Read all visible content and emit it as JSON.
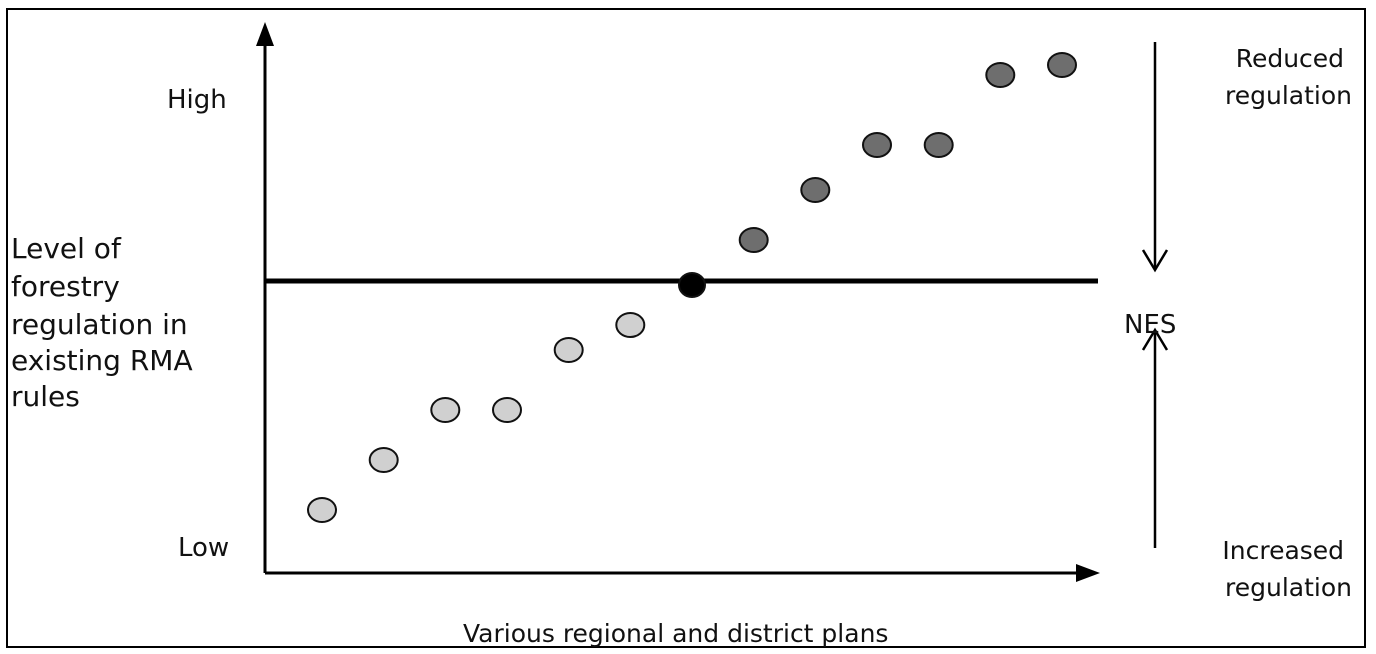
{
  "y_axis": {
    "title_lines": [
      "Level of",
      "forestry",
      "regulation in",
      "existing RMA",
      "rules"
    ],
    "high_label": "High",
    "low_label": "Low"
  },
  "x_axis": {
    "title": "Various regional and district plans"
  },
  "reference_line": {
    "label": "NES"
  },
  "arrows": {
    "top_label_lines": [
      "Reduced",
      "regulation"
    ],
    "bottom_label_lines": [
      "Increased",
      "regulation"
    ]
  },
  "points": [
    {
      "x": 1,
      "y": 1.0,
      "group": "below"
    },
    {
      "x": 2,
      "y": 2.0,
      "group": "below"
    },
    {
      "x": 3,
      "y": 3.0,
      "group": "below"
    },
    {
      "x": 4,
      "y": 3.0,
      "group": "below"
    },
    {
      "x": 5,
      "y": 4.2,
      "group": "below"
    },
    {
      "x": 6,
      "y": 4.7,
      "group": "below"
    },
    {
      "x": 7,
      "y": 5.5,
      "group": "nes"
    },
    {
      "x": 8,
      "y": 6.4,
      "group": "above"
    },
    {
      "x": 9,
      "y": 7.4,
      "group": "above"
    },
    {
      "x": 10,
      "y": 8.3,
      "group": "above"
    },
    {
      "x": 11,
      "y": 8.3,
      "group": "above"
    },
    {
      "x": 12,
      "y": 9.7,
      "group": "above"
    },
    {
      "x": 13,
      "y": 9.9,
      "group": "above"
    }
  ],
  "colors": {
    "below": "#d0d0d0",
    "above": "#6e6e6e",
    "nes": "#000000",
    "stroke": "#111111"
  }
}
